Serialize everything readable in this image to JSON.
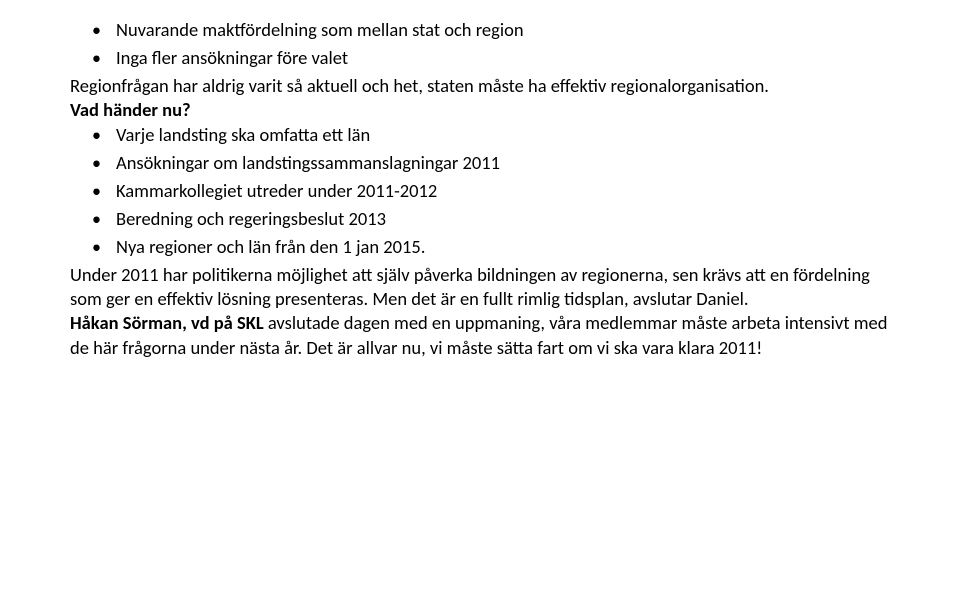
{
  "page": {
    "background_color": "#ffffff",
    "text_color": "#000000",
    "font_family": "Calibri, Segoe UI, Arial, sans-serif",
    "base_fontsize_pt": 14
  },
  "top_bullets": [
    "Nuvarande maktfördelning som mellan stat och region",
    "Inga fler ansökningar före valet"
  ],
  "para1": "Regionfrågan har aldrig varit så aktuell och het, staten måste ha effektiv regionalorganisation.",
  "heading1": "Vad händer nu?",
  "mid_bullets": [
    "Varje landsting ska omfatta ett län",
    "Ansökningar om landstingssammanslagningar 2011",
    "Kammarkollegiet utreder under 2011-2012",
    "Beredning och regeringsbeslut 2013",
    "Nya regioner och län från den 1 jan 2015."
  ],
  "para2": "Under 2011 har politikerna möjlighet att själv påverka bildningen av regionerna, sen krävs att en fördelning som ger en effektiv lösning presenteras. Men det är en fullt rimlig tidsplan, avslutar Daniel.",
  "para3_bold": "Håkan Sörman, vd på SKL",
  "para3_rest": " avslutade dagen med en uppmaning, våra medlemmar måste arbeta intensivt med de här frågorna under nästa år. Det är allvar nu, vi måste sätta fart om vi ska vara klara 2011!"
}
